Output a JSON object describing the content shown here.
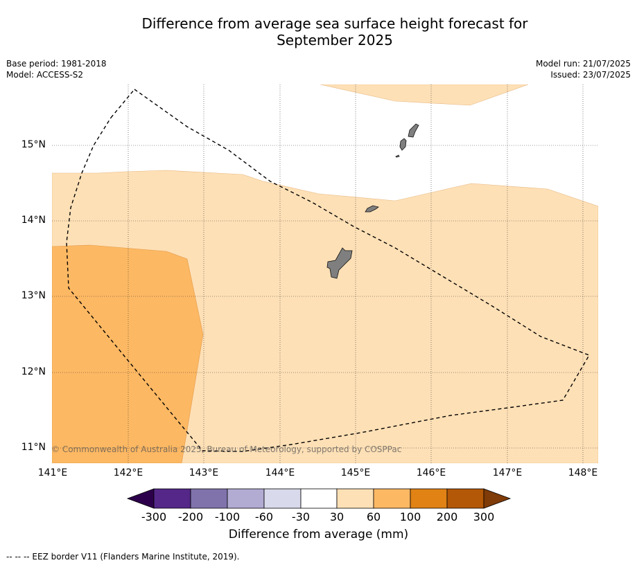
{
  "title_line1": "Difference from average sea surface height forecast for",
  "title_line2": "September 2025",
  "meta_left": {
    "base_period": "Base period: 1981-2018",
    "model": "Model: ACCESS-S2"
  },
  "meta_right": {
    "model_run": "Model run: 21/07/2025",
    "issued": "Issued: 23/07/2025"
  },
  "axes": {
    "lat_labels": [
      "15°N",
      "14°N",
      "13°N",
      "12°N",
      "11°N"
    ],
    "lon_labels": [
      "141°E",
      "142°E",
      "143°E",
      "144°E",
      "145°E",
      "146°E",
      "147°E",
      "148°E"
    ]
  },
  "copyright": "© Commonwealth of Australia 2025, Bureau of Meteorology, supported by COSPPac",
  "colorbar": {
    "labels": [
      "-300",
      "-200",
      "-100",
      "-60",
      "-30",
      "30",
      "60",
      "100",
      "200",
      "300"
    ],
    "title": "Difference from average (mm)",
    "colors": [
      "#2d004b",
      "#542788",
      "#8073ac",
      "#b2abd2",
      "#d8daeb",
      "#ffffff",
      "#fee0b6",
      "#fdb863",
      "#e08214",
      "#b35806",
      "#7f3b08"
    ]
  },
  "footnote": "--  --  -- EEZ border V11 (Flanders Marine Institute, 2019)."
}
